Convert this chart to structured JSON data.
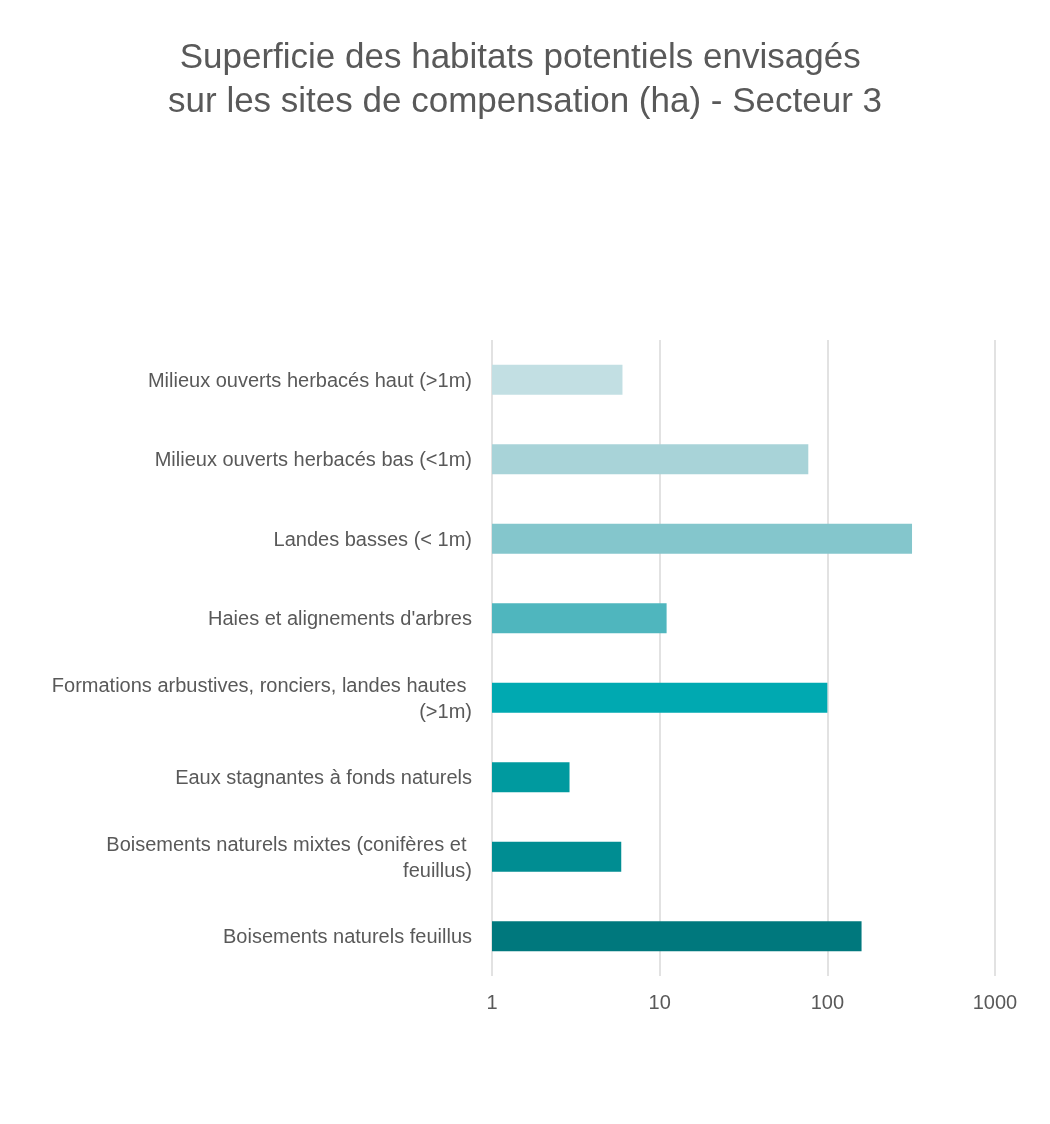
{
  "chart_data": {
    "type": "bar",
    "orientation": "horizontal",
    "title": "Superficie des habitats potentiels envisagés sur les sites de compensation (ha) - Secteur 3",
    "categories": [
      "Milieux ouverts herbacés haut (>1m)",
      "Milieux ouverts herbacés bas (<1m)",
      "Landes basses (< 1m)",
      "Haies et alignements d'arbres",
      "Formations arbustives, ronciers, landes hautes (>1m)",
      "Eaux stagnantes à fonds naturels",
      "Boisements naturels mixtes (conifères et feuillus)",
      "Boisements naturels feuillus"
    ],
    "values": [
      6.0,
      77,
      320,
      11,
      100,
      2.9,
      5.9,
      160
    ],
    "colors": [
      "#c2dfe3",
      "#a8d3d8",
      "#84c6cc",
      "#4fb6be",
      "#00a9b1",
      "#009a9f",
      "#008d92",
      "#00787d"
    ],
    "log": "x",
    "xlim": [
      1,
      1000
    ],
    "xticks": [
      1,
      10,
      100,
      1000
    ],
    "grid": "x"
  }
}
